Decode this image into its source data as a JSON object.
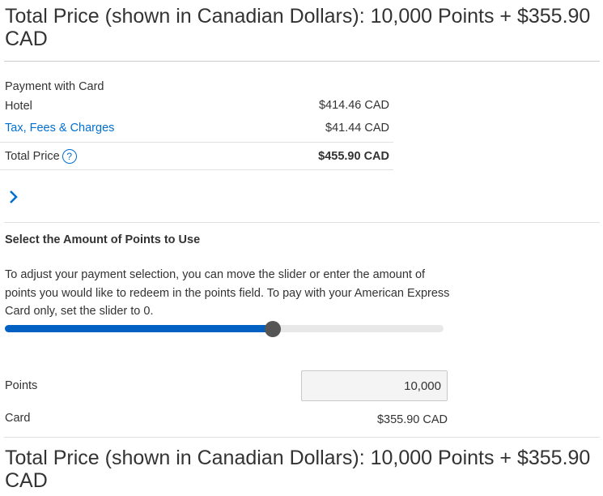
{
  "header": {
    "title": "Total Price (shown in Canadian Dollars): 10,000 Points + $355.90 CAD"
  },
  "summary": {
    "section_label": "Payment with Card",
    "hotel_label": "Hotel",
    "hotel_value": "$414.46 CAD",
    "tax_label": "Tax, Fees & Charges",
    "tax_value": "$41.44 CAD",
    "total_label": "Total Price",
    "total_help": "?",
    "total_value": "$455.90 CAD"
  },
  "points": {
    "heading": "Select the Amount of Points to Use",
    "description": "To adjust your payment selection, you can move the slider or enter the amount of points you would like to redeem in the points field. To pay with your American Express Card only, set the slider to 0.",
    "slider_fraction": 0.61,
    "points_label": "Points",
    "points_value": "10,000",
    "card_label": "Card",
    "card_value": "$355.90 CAD"
  },
  "footer": {
    "title": "Total Price (shown in Canadian Dollars): 10,000 Points + $355.90 CAD"
  },
  "colors": {
    "accent": "#006fcf",
    "slider_fill": "#0061c2"
  }
}
